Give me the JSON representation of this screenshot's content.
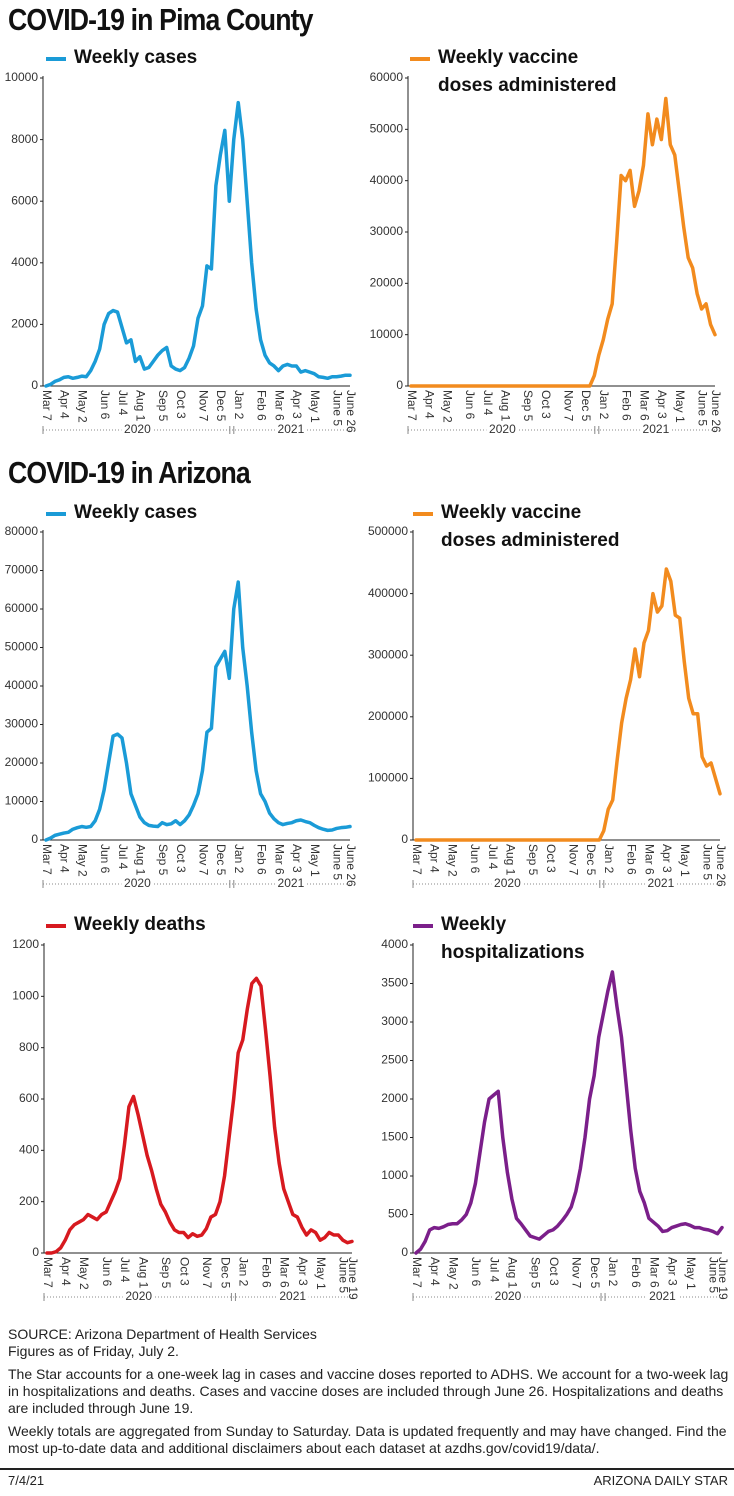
{
  "section_titles": [
    "COVID-19 in Pima County",
    "COVID-19 in Arizona"
  ],
  "chart_data": [
    {
      "type": "line",
      "categories": [
        "Mar 7",
        null,
        null,
        null,
        "Apr 4",
        null,
        null,
        null,
        "May 2",
        null,
        null,
        null,
        null,
        "Jun 6",
        null,
        null,
        null,
        "Jul 4",
        null,
        null,
        null,
        "Aug 1",
        null,
        null,
        null,
        null,
        "Sep 5",
        null,
        null,
        null,
        "Oct 3",
        null,
        null,
        null,
        null,
        "Nov 7",
        null,
        null,
        null,
        "Dec 5",
        null,
        null,
        null,
        "Jan 2",
        null,
        null,
        null,
        null,
        "Feb 6",
        null,
        null,
        null,
        "Mar 6",
        null,
        null,
        null,
        "Apr 3",
        null,
        null,
        null,
        "May 1",
        null,
        null,
        null,
        null,
        "June 5",
        null,
        null,
        "June 26"
      ],
      "series": [
        {
          "name": "Weekly cases",
          "color": "#1a9bd7",
          "values": [
            0,
            50,
            150,
            200,
            280,
            300,
            250,
            280,
            320,
            300,
            500,
            800,
            1200,
            2000,
            2350,
            2450,
            2400,
            1900,
            1400,
            1500,
            800,
            950,
            550,
            600,
            800,
            1000,
            1150,
            1250,
            650,
            550,
            500,
            600,
            900,
            1300,
            2200,
            2600,
            3900,
            3800,
            6500,
            7500,
            8300,
            6000,
            8000,
            9200,
            8000,
            6000,
            4000,
            2500,
            1500,
            1000,
            750,
            650,
            500,
            650,
            700,
            650,
            650,
            450,
            500,
            450,
            400,
            300,
            280,
            250,
            300,
            300,
            320,
            350,
            350
          ]
        }
      ],
      "ylim": [
        0,
        10000
      ],
      "yticks": [
        0,
        2000,
        4000,
        6000,
        8000,
        10000
      ],
      "year_labels": [
        "2020",
        "2021"
      ]
    },
    {
      "type": "line",
      "categories": [
        "Mar 7",
        null,
        null,
        null,
        "Apr 4",
        null,
        null,
        null,
        "May 2",
        null,
        null,
        null,
        null,
        "Jun 6",
        null,
        null,
        null,
        "Jul 4",
        null,
        null,
        null,
        "Aug 1",
        null,
        null,
        null,
        null,
        "Sep 5",
        null,
        null,
        null,
        "Oct 3",
        null,
        null,
        null,
        null,
        "Nov 7",
        null,
        null,
        null,
        "Dec 5",
        null,
        null,
        null,
        "Jan 2",
        null,
        null,
        null,
        null,
        "Feb 6",
        null,
        null,
        null,
        "Mar 6",
        null,
        null,
        null,
        "Apr 3",
        null,
        null,
        null,
        "May 1",
        null,
        null,
        null,
        null,
        "June 5",
        null,
        null,
        "June 26"
      ],
      "series": [
        {
          "name": "Weekly vaccine doses administered",
          "color": "#f28b1e",
          "values": [
            0,
            0,
            0,
            0,
            0,
            0,
            0,
            0,
            0,
            0,
            0,
            0,
            0,
            0,
            0,
            0,
            0,
            0,
            0,
            0,
            0,
            0,
            0,
            0,
            0,
            0,
            0,
            0,
            0,
            0,
            0,
            0,
            0,
            0,
            0,
            0,
            0,
            0,
            0,
            0,
            0,
            2000,
            6000,
            9000,
            13000,
            16000,
            28000,
            41000,
            40000,
            42000,
            35000,
            38000,
            43000,
            53000,
            47000,
            52000,
            48000,
            56000,
            47000,
            45000,
            38000,
            31000,
            25000,
            23000,
            18000,
            15000,
            16000,
            12000,
            10000
          ]
        }
      ],
      "ylim": [
        0,
        60000
      ],
      "yticks": [
        0,
        10000,
        20000,
        30000,
        40000,
        50000,
        60000
      ],
      "year_labels": [
        "2020",
        "2021"
      ]
    },
    {
      "type": "line",
      "categories": [
        "Mar 7",
        null,
        null,
        null,
        "Apr 4",
        null,
        null,
        null,
        "May 2",
        null,
        null,
        null,
        null,
        "Jun 6",
        null,
        null,
        null,
        "Jul 4",
        null,
        null,
        null,
        "Aug 1",
        null,
        null,
        null,
        null,
        "Sep 5",
        null,
        null,
        null,
        "Oct 3",
        null,
        null,
        null,
        null,
        "Nov 7",
        null,
        null,
        null,
        "Dec 5",
        null,
        null,
        null,
        "Jan 2",
        null,
        null,
        null,
        null,
        "Feb 6",
        null,
        null,
        null,
        "Mar 6",
        null,
        null,
        null,
        "Apr 3",
        null,
        null,
        null,
        "May 1",
        null,
        null,
        null,
        null,
        "June 5",
        null,
        null,
        "June 26"
      ],
      "series": [
        {
          "name": "Weekly cases",
          "color": "#1a9bd7",
          "values": [
            0,
            500,
            1200,
            1500,
            1800,
            2000,
            2800,
            3200,
            3500,
            3300,
            3500,
            5000,
            8000,
            13000,
            20000,
            27000,
            27500,
            26500,
            20000,
            12000,
            9000,
            6000,
            4500,
            3800,
            3600,
            3500,
            4500,
            4000,
            4200,
            5000,
            4000,
            5000,
            6500,
            9000,
            12000,
            18000,
            28000,
            29000,
            45000,
            47000,
            49000,
            42000,
            60000,
            67000,
            50000,
            40000,
            28000,
            18000,
            12000,
            10000,
            7000,
            5500,
            4500,
            4000,
            4300,
            4500,
            5000,
            5200,
            4800,
            4500,
            3800,
            3200,
            2800,
            2500,
            2600,
            3000,
            3200,
            3300,
            3500
          ]
        }
      ],
      "ylim": [
        0,
        80000
      ],
      "yticks": [
        0,
        10000,
        20000,
        30000,
        40000,
        50000,
        60000,
        70000,
        80000
      ],
      "year_labels": [
        "2020",
        "2021"
      ]
    },
    {
      "type": "line",
      "categories": [
        "Mar 7",
        null,
        null,
        null,
        "Apr 4",
        null,
        null,
        null,
        "May 2",
        null,
        null,
        null,
        null,
        "Jun 6",
        null,
        null,
        null,
        "Jul 4",
        null,
        null,
        null,
        "Aug 1",
        null,
        null,
        null,
        null,
        "Sep 5",
        null,
        null,
        null,
        "Oct 3",
        null,
        null,
        null,
        null,
        "Nov 7",
        null,
        null,
        null,
        "Dec 5",
        null,
        null,
        null,
        "Jan 2",
        null,
        null,
        null,
        null,
        "Feb 6",
        null,
        null,
        null,
        "Mar 6",
        null,
        null,
        null,
        "Apr 3",
        null,
        null,
        null,
        "May 1",
        null,
        null,
        null,
        null,
        "June 5",
        null,
        null,
        "June 26"
      ],
      "series": [
        {
          "name": "Weekly vaccine doses administered",
          "color": "#f28b1e",
          "values": [
            0,
            0,
            0,
            0,
            0,
            0,
            0,
            0,
            0,
            0,
            0,
            0,
            0,
            0,
            0,
            0,
            0,
            0,
            0,
            0,
            0,
            0,
            0,
            0,
            0,
            0,
            0,
            0,
            0,
            0,
            0,
            0,
            0,
            0,
            0,
            0,
            0,
            0,
            0,
            0,
            0,
            0,
            15000,
            50000,
            65000,
            130000,
            190000,
            230000,
            260000,
            310000,
            265000,
            320000,
            340000,
            400000,
            370000,
            380000,
            440000,
            420000,
            365000,
            360000,
            290000,
            230000,
            205000,
            205000,
            135000,
            120000,
            125000,
            100000,
            75000
          ]
        }
      ],
      "ylim": [
        0,
        500000
      ],
      "yticks": [
        0,
        100000,
        200000,
        300000,
        400000,
        500000
      ],
      "year_labels": [
        "2020",
        "2021"
      ]
    },
    {
      "type": "line",
      "categories": [
        "Mar 7",
        null,
        null,
        null,
        "Apr 4",
        null,
        null,
        null,
        "May 2",
        null,
        null,
        null,
        null,
        "Jun 6",
        null,
        null,
        null,
        "Jul 4",
        null,
        null,
        null,
        "Aug 1",
        null,
        null,
        null,
        null,
        "Sep 5",
        null,
        null,
        null,
        "Oct 3",
        null,
        null,
        null,
        null,
        "Nov 7",
        null,
        null,
        null,
        "Dec 5",
        null,
        null,
        null,
        "Jan 2",
        null,
        null,
        null,
        null,
        "Feb 6",
        null,
        null,
        null,
        "Mar 6",
        null,
        null,
        null,
        "Apr 3",
        null,
        null,
        null,
        "May 1",
        null,
        null,
        null,
        null,
        "June 5",
        null,
        "June 19"
      ],
      "series": [
        {
          "name": "Weekly deaths",
          "color": "#d7191f",
          "values": [
            0,
            0,
            5,
            20,
            50,
            90,
            110,
            120,
            130,
            150,
            140,
            130,
            150,
            160,
            200,
            240,
            290,
            420,
            570,
            610,
            540,
            460,
            380,
            320,
            250,
            190,
            160,
            120,
            90,
            80,
            80,
            60,
            75,
            65,
            70,
            95,
            140,
            150,
            200,
            300,
            450,
            600,
            780,
            830,
            950,
            1050,
            1070,
            1040,
            870,
            690,
            490,
            350,
            250,
            200,
            150,
            140,
            100,
            70,
            90,
            80,
            50,
            60,
            80,
            70,
            70,
            50,
            40,
            45
          ]
        }
      ],
      "ylim": [
        0,
        1200
      ],
      "yticks": [
        0,
        200,
        400,
        600,
        800,
        1000,
        1200
      ],
      "year_labels": [
        "2020",
        "2021"
      ]
    },
    {
      "type": "line",
      "categories": [
        "Mar 7",
        null,
        null,
        null,
        "Apr 4",
        null,
        null,
        null,
        "May 2",
        null,
        null,
        null,
        null,
        "Jun 6",
        null,
        null,
        null,
        "Jul 4",
        null,
        null,
        null,
        "Aug 1",
        null,
        null,
        null,
        null,
        "Sep 5",
        null,
        null,
        null,
        "Oct 3",
        null,
        null,
        null,
        null,
        "Nov 7",
        null,
        null,
        null,
        "Dec 5",
        null,
        null,
        null,
        "Jan 2",
        null,
        null,
        null,
        null,
        "Feb 6",
        null,
        null,
        null,
        "Mar 6",
        null,
        null,
        null,
        "Apr 3",
        null,
        null,
        null,
        "May 1",
        null,
        null,
        null,
        null,
        "June 5",
        null,
        "June 19"
      ],
      "series": [
        {
          "name": "Weekly hospitalizations",
          "color": "#7b1f8a",
          "values": [
            0,
            50,
            150,
            300,
            330,
            320,
            340,
            370,
            380,
            380,
            430,
            500,
            650,
            900,
            1300,
            1700,
            2000,
            2050,
            2100,
            1500,
            1050,
            700,
            450,
            380,
            300,
            220,
            200,
            180,
            230,
            280,
            300,
            350,
            420,
            500,
            600,
            800,
            1100,
            1500,
            2000,
            2300,
            2800,
            3100,
            3400,
            3650,
            3200,
            2800,
            2200,
            1600,
            1100,
            800,
            650,
            450,
            400,
            350,
            280,
            290,
            330,
            350,
            370,
            380,
            360,
            330,
            330,
            310,
            300,
            280,
            250,
            330
          ]
        }
      ],
      "ylim": [
        0,
        4000
      ],
      "yticks": [
        0,
        500,
        1000,
        1500,
        2000,
        2500,
        3000,
        3500,
        4000
      ],
      "year_labels": [
        "2020",
        "2021"
      ]
    }
  ],
  "notes": [
    "SOURCE: Arizona Department of Health Services",
    "Figures as of Friday, July 2.",
    "The Star accounts for a one-week lag in cases and vaccine doses reported to ADHS. We account for a two-week lag in hospitalizations and deaths. Cases and vaccine doses are included through June 26. Hospitalizations and deaths are included through June 19.",
    "Weekly totals are aggregated from Sunday to Saturday. Data is updated frequently and may have changed. Find the most up-to-date data and additional disclaimers about each dataset at azdhs.gov/covid19/data/."
  ],
  "footer": {
    "date": "7/4/21",
    "publisher": "ARIZONA DAILY STAR"
  }
}
